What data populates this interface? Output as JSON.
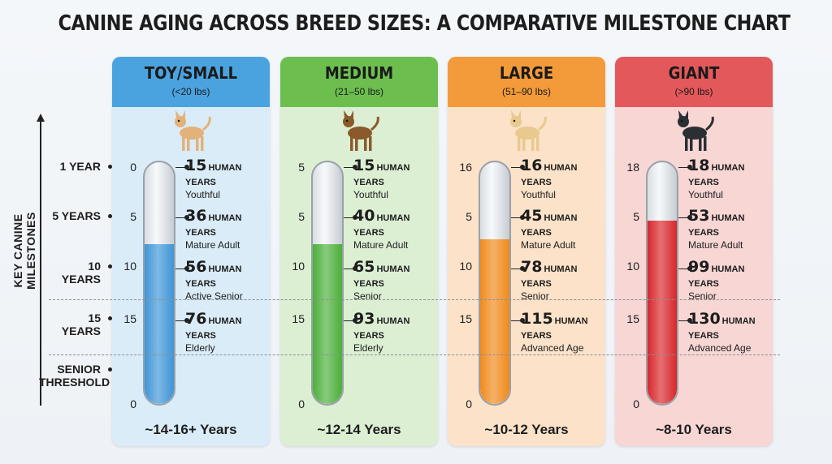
{
  "title": "CANINE AGING ACROSS BREED SIZES: A COMPARATIVE MILESTONE CHART",
  "yaxis_label": "KEY CANINE MILESTONES",
  "milestones": [
    "1 YEAR",
    "5 YEARS",
    "10 YEARS",
    "15 YEARS",
    "SENIOR THRESHOLD"
  ],
  "unit_label": "HUMAN YEARS",
  "chart_data": {
    "type": "table",
    "title": "CANINE AGING ACROSS BREED SIZES: A COMPARATIVE MILESTONE CHART",
    "ylabel": "KEY CANINE MILESTONES",
    "categories": [
      "1 YEAR",
      "5 YEARS",
      "10 YEARS",
      "15 YEARS"
    ],
    "series": [
      {
        "name": "TOY/SMALL",
        "range": "(<20 lbs)",
        "color": "#3f95d6",
        "header_color": "#4aa3df",
        "bg": "#d9ecf8",
        "dog_color": "#e2b27a",
        "tube_ticks": [
          "0",
          "5",
          "10",
          "15",
          "0"
        ],
        "values": [
          15,
          36,
          56,
          76
        ],
        "stages": [
          "Youthful",
          "Mature Adult",
          "Active Senior",
          "Elderly"
        ],
        "fill_fraction": 0.66,
        "lifespan": "~14-16+ Years"
      },
      {
        "name": "MEDIUM",
        "range": "(21–50 lbs)",
        "color": "#4caf3a",
        "header_color": "#6cbf4f",
        "bg": "#dcefd3",
        "dog_color": "#8a5a2b",
        "tube_ticks": [
          "5",
          "5",
          "10",
          "15",
          "0"
        ],
        "values": [
          15,
          40,
          65,
          93
        ],
        "stages": [
          "Youthful",
          "Mature Adult",
          "Senior",
          "Elderly"
        ],
        "fill_fraction": 0.66,
        "lifespan": "~12-14 Years"
      },
      {
        "name": "LARGE",
        "range": "(51–90 lbs)",
        "color": "#f08a1c",
        "header_color": "#f39a3a",
        "bg": "#fbe2c8",
        "dog_color": "#e8c98e",
        "tube_ticks": [
          "16",
          "5",
          "10",
          "15",
          "0"
        ],
        "values": [
          16,
          45,
          78,
          115
        ],
        "stages": [
          "Youthful",
          "Mature Adult",
          "Senior",
          "Advanced Age"
        ],
        "fill_fraction": 0.68,
        "lifespan": "~10-12 Years"
      },
      {
        "name": "GIANT",
        "range": "(>90 lbs)",
        "color": "#d8272b",
        "header_color": "#e3585a",
        "bg": "#f7d6d4",
        "dog_color": "#2b2f33",
        "tube_ticks": [
          "18",
          "5",
          "10",
          "15",
          "0"
        ],
        "values": [
          18,
          53,
          99,
          130
        ],
        "stages": [
          "Youthful",
          "Mature Adult",
          "Senior",
          "Advanced Age"
        ],
        "fill_fraction": 0.76,
        "lifespan": "~8-10 Years"
      }
    ]
  }
}
